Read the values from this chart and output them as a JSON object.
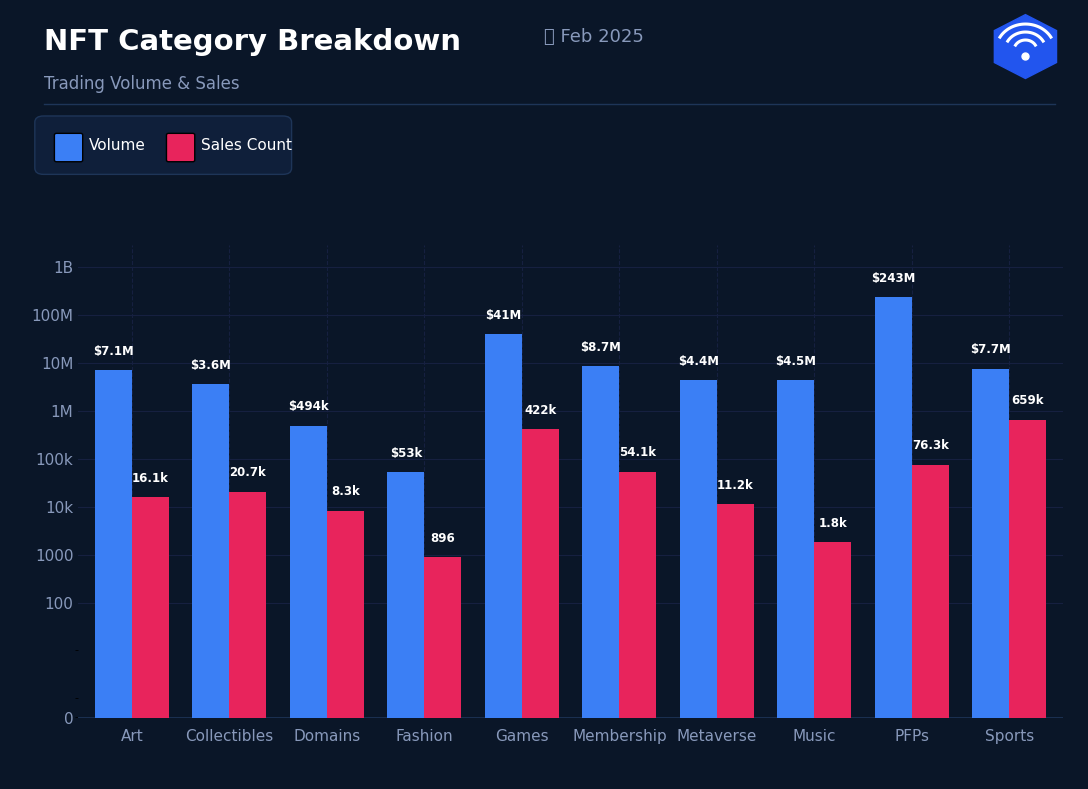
{
  "title": "NFT Category Breakdown",
  "date_label": "Feb 2025",
  "subtitle": "Trading Volume & Sales",
  "background_color": "#0a1628",
  "plot_bg_color": "#0a1628",
  "categories": [
    "Art",
    "Collectibles",
    "Domains",
    "Fashion",
    "Games",
    "Membership",
    "Metaverse",
    "Music",
    "PFPs",
    "Sports"
  ],
  "volume": [
    7100000,
    3600000,
    494000,
    53000,
    41000000,
    8700000,
    4400000,
    4500000,
    243000000,
    7700000
  ],
  "sales_count": [
    16100,
    20700,
    8300,
    896,
    422000,
    54100,
    11200,
    1800,
    76300,
    659000
  ],
  "volume_labels": [
    "$7.1M",
    "$3.6M",
    "$494k",
    "$53k",
    "$41M",
    "$8.7M",
    "$4.4M",
    "$4.5M",
    "$243M",
    "$7.7M"
  ],
  "sales_labels": [
    "16.1k",
    "20.7k",
    "8.3k",
    "896",
    "422k",
    "54.1k",
    "11.2k",
    "1.8k",
    "76.3k",
    "659k"
  ],
  "volume_color": "#3b7ff5",
  "sales_color": "#e8245c",
  "text_color": "#ffffff",
  "axis_text_color": "#8899bb",
  "grid_color": "#162040",
  "legend_bg": "#0f1f3a",
  "legend_border": "#1e3558",
  "separator_color": "#1e3558",
  "ytick_labels": [
    "0",
    "100",
    "1000",
    "10k",
    "100k",
    "1M",
    "10M",
    "100M",
    "1B"
  ],
  "ytick_values": [
    0,
    100,
    1000,
    10000,
    100000,
    1000000,
    10000000,
    100000000,
    1000000000
  ]
}
